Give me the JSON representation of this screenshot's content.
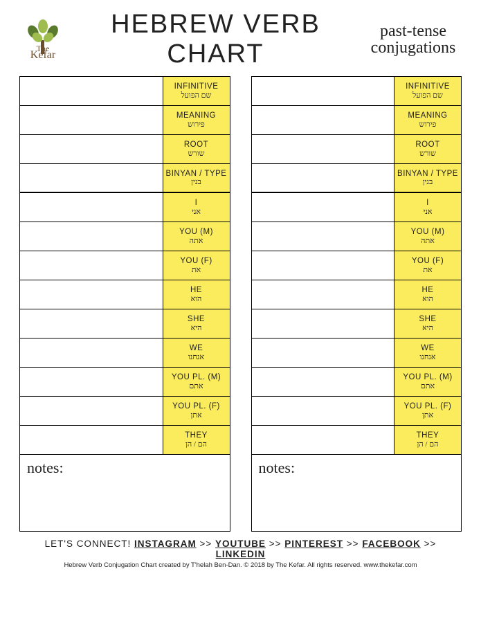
{
  "header": {
    "title": "HEBREW VERB CHART",
    "subtitle_line1": "past-tense",
    "subtitle_line2": "conjugations",
    "logo_text": "The Kefar"
  },
  "colors": {
    "highlight": "#fbec5d",
    "border": "#000000",
    "background": "#ffffff",
    "text": "#222222",
    "leaf_dark": "#5a7a2e",
    "leaf_light": "#9fbc4e",
    "trunk": "#6b4e2e"
  },
  "rows": {
    "meta": [
      {
        "en": "INFINITIVE",
        "he": "שם הפועל"
      },
      {
        "en": "MEANING",
        "he": "פירוש"
      },
      {
        "en": "ROOT",
        "he": "שורש"
      },
      {
        "en": "BINYAN / TYPE",
        "he": "בנין"
      }
    ],
    "person": [
      {
        "en": "I",
        "he": "אני"
      },
      {
        "en": "YOU (M)",
        "he": "אתה"
      },
      {
        "en": "YOU (F)",
        "he": "את"
      },
      {
        "en": "HE",
        "he": "הוא"
      },
      {
        "en": "SHE",
        "he": "היא"
      },
      {
        "en": "WE",
        "he": "אנחנו"
      },
      {
        "en": "YOU PL. (M)",
        "he": "אתם"
      },
      {
        "en": "YOU PL. (F)",
        "he": "אתן"
      },
      {
        "en": "THEY",
        "he": "הם / הן"
      }
    ]
  },
  "notes_label": "notes:",
  "footer": {
    "lead": "LET'S CONNECT!",
    "sep": " >> ",
    "links": [
      "INSTAGRAM",
      "YOUTUBE",
      "PINTEREST",
      "FACEBOOK",
      "LINKEDIN"
    ],
    "copyright": "Hebrew Verb Conjugation Chart created by T'helah Ben-Dan. © 2018 by The Kefar. All rights reserved. www.thekefar.com"
  }
}
